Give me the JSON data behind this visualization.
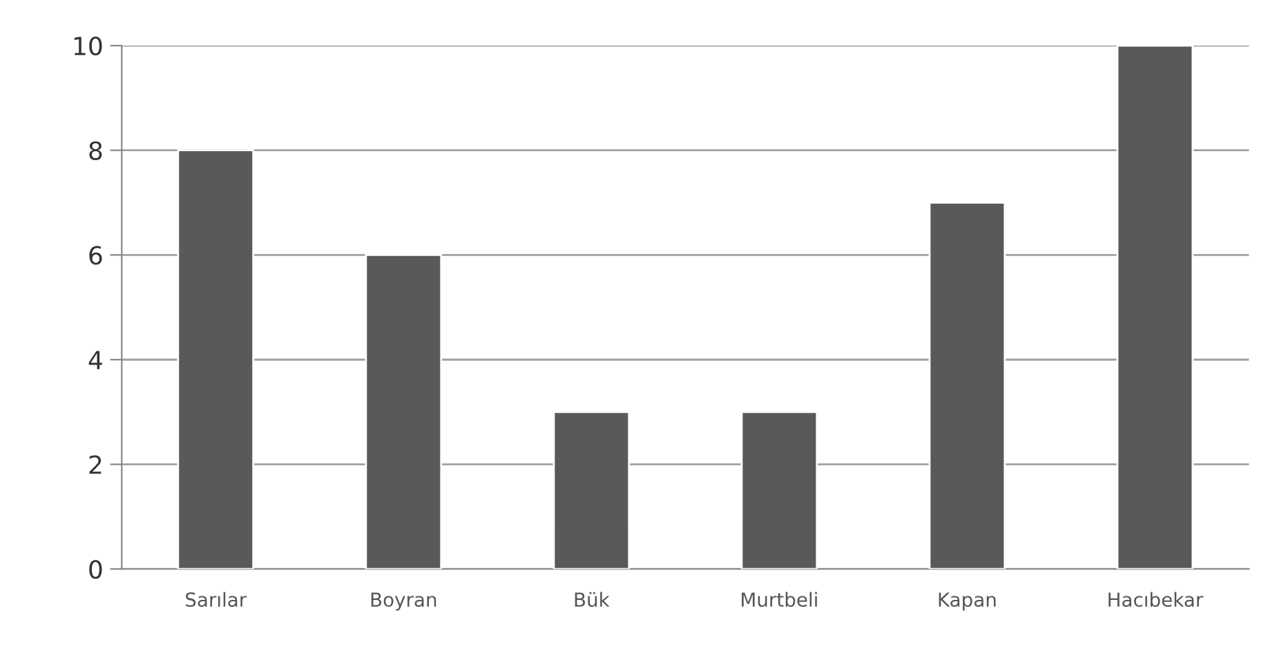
{
  "chart_data": {
    "type": "bar",
    "categories": [
      "Sarılar",
      "Boyran",
      "Bük",
      "Murtbeli",
      "Kapan",
      "Hacıbekar"
    ],
    "values": [
      8,
      6,
      3,
      3,
      7,
      10
    ],
    "color": "#595959",
    "ylim": [
      0,
      10
    ],
    "yticks": [
      0,
      2,
      4,
      6,
      8,
      10
    ],
    "grid": "y",
    "legend": false
  }
}
